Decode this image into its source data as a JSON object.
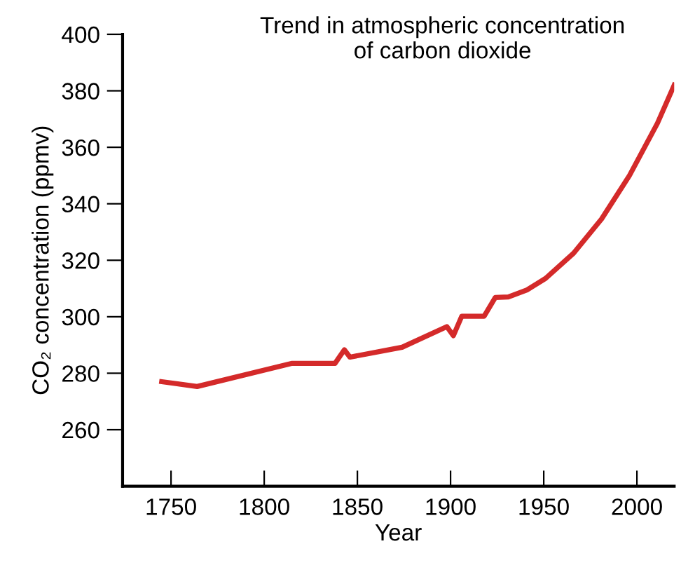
{
  "chart_data": {
    "type": "line",
    "title": "Trend in atmospheric concentration\nof carbon dioxide",
    "xlabel": "Year",
    "ylabel": "CO₂ concentration (ppmv)",
    "x": [
      1745,
      1764,
      1815,
      1838,
      1843,
      1846,
      1874,
      1898,
      1901.5,
      1906,
      1918,
      1924,
      1931,
      1941,
      1951,
      1966,
      1981,
      1996,
      2011,
      2020
    ],
    "series": [
      {
        "color": "#d42a2a",
        "values": [
          277,
          275.3,
          283.5,
          283.5,
          288.3,
          285.7,
          289.2,
          296.5,
          293.3,
          300.2,
          300.2,
          306.8,
          307,
          309.5,
          313.6,
          322.5,
          334.6,
          350,
          368.5,
          382
        ]
      }
    ],
    "xlim": [
      1724,
      2020
    ],
    "ylim": [
      240,
      400
    ],
    "xticks": [
      1750,
      1800,
      1850,
      1900,
      1950,
      2000
    ],
    "yticks": [
      260,
      280,
      300,
      320,
      340,
      360,
      380,
      400
    ],
    "grid": false,
    "legend": false,
    "marker": "none",
    "line_style": "solid"
  }
}
